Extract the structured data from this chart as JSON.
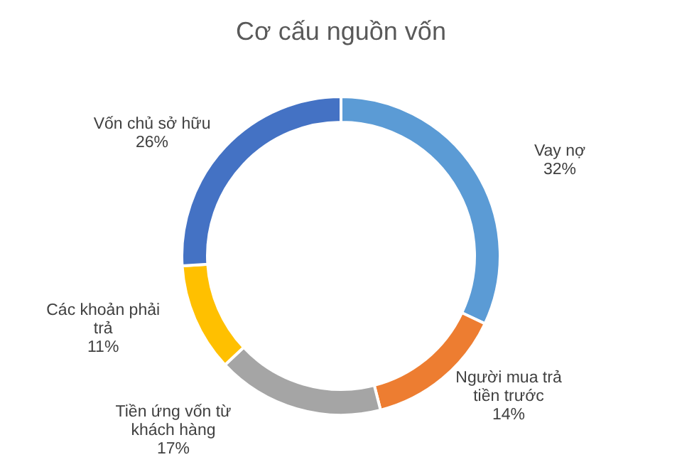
{
  "chart_data": {
    "type": "donut",
    "title": "Cơ cấu nguồn vốn",
    "categories": [
      "Vay nợ",
      "Người mua trả tiền trước",
      "Tiền ứng vốn từ khách hàng",
      "Các khoản phải trả",
      "Vốn chủ sở hữu"
    ],
    "values": [
      32,
      14,
      17,
      11,
      26
    ],
    "value_labels": [
      "32%",
      "14%",
      "17%",
      "11%",
      "26%"
    ],
    "colors": [
      "#5b9bd5",
      "#ed7d31",
      "#a5a5a5",
      "#ffc000",
      "#4472c4"
    ]
  }
}
